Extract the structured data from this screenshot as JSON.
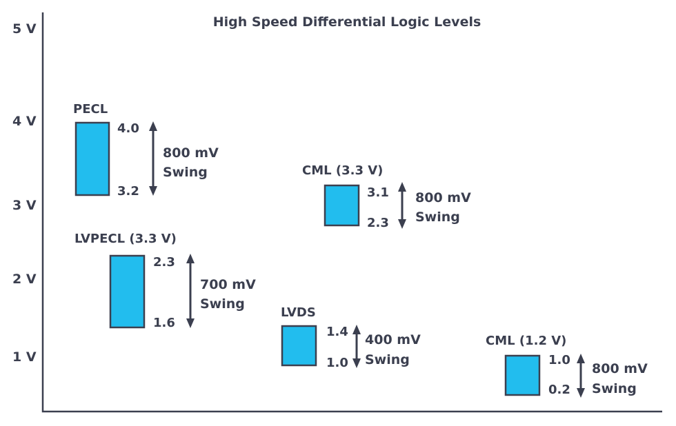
{
  "chart_data": {
    "type": "range-bar",
    "title": "High Speed Differential Logic Levels",
    "y_ticks": [
      "5 V",
      "4 V",
      "3 V",
      "2 V",
      "1 V"
    ],
    "y_tick_values": [
      5,
      4,
      3,
      2,
      1
    ],
    "ylim": [
      0.4,
      5.2
    ],
    "series": [
      {
        "name": "PECL",
        "high": 4.0,
        "low": 3.2,
        "high_label": "4.0",
        "low_label": "3.2",
        "swing_value": "800 mV",
        "swing_word": "Swing"
      },
      {
        "name": "LVPECL (3.3 V)",
        "high": 2.3,
        "low": 1.6,
        "high_label": "2.3",
        "low_label": "1.6",
        "swing_value": "700 mV",
        "swing_word": "Swing"
      },
      {
        "name": "CML (3.3 V)",
        "high": 3.1,
        "low": 2.3,
        "high_label": "3.1",
        "low_label": "2.3",
        "swing_value": "800 mV",
        "swing_word": "Swing"
      },
      {
        "name": "LVDS",
        "high": 1.4,
        "low": 1.0,
        "high_label": "1.4",
        "low_label": "1.0",
        "swing_value": "400 mV",
        "swing_word": "Swing"
      },
      {
        "name": "CML (1.2 V)",
        "high": 1.0,
        "low": 0.2,
        "high_label": "1.0",
        "low_label": "0.2",
        "swing_value": "800 mV",
        "swing_word": "Swing"
      }
    ],
    "colors": {
      "box_fill": "#22bdee",
      "ink": "#3b3f4f"
    },
    "grid": false,
    "legend": "none"
  }
}
